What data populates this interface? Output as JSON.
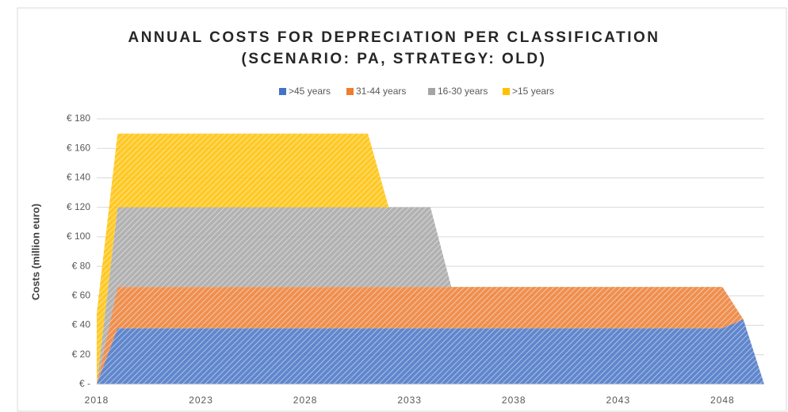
{
  "chart_data": {
    "type": "area",
    "title": [
      "ANNUAL COSTS FOR DEPRECIATION PER CLASSIFICATION",
      "(SCENARIO: PA, STRATEGY: OLD)"
    ],
    "y_label": "Costs (million euro)",
    "x": [
      2018,
      2019,
      2020,
      2021,
      2022,
      2023,
      2024,
      2025,
      2026,
      2027,
      2028,
      2029,
      2030,
      2031,
      2032,
      2033,
      2034,
      2035,
      2036,
      2037,
      2038,
      2039,
      2040,
      2041,
      2042,
      2043,
      2044,
      2045,
      2046,
      2047,
      2048,
      2049,
      2050
    ],
    "xlim": [
      2018,
      2050
    ],
    "xticks": [
      2018,
      2023,
      2028,
      2033,
      2038,
      2043,
      2048
    ],
    "ylim": [
      0,
      180
    ],
    "yticks": [
      {
        "value": 0,
        "label": "€ -"
      },
      {
        "value": 20,
        "label": "€ 20"
      },
      {
        "value": 40,
        "label": "€ 40"
      },
      {
        "value": 60,
        "label": "€ 60"
      },
      {
        "value": 80,
        "label": "€ 80"
      },
      {
        "value": 100,
        "label": "€ 100"
      },
      {
        "value": 120,
        "label": "€ 120"
      },
      {
        "value": 140,
        "label": "€ 140"
      },
      {
        "value": 160,
        "label": "€ 160"
      },
      {
        "value": 180,
        "label": "€ 180"
      }
    ],
    "grid": true,
    "stacked": true,
    "legend": "top",
    "series": [
      {
        "name": ">45 years",
        "color": "#4472c4",
        "values": [
          0,
          38,
          38,
          38,
          38,
          38,
          38,
          38,
          38,
          38,
          38,
          38,
          38,
          38,
          38,
          38,
          38,
          38,
          38,
          38,
          38,
          38,
          38,
          38,
          38,
          38,
          38,
          38,
          38,
          38,
          38,
          44,
          0
        ]
      },
      {
        "name": "31-44 years",
        "color": "#ed7d31",
        "values": [
          0,
          28,
          28,
          28,
          28,
          28,
          28,
          28,
          28,
          28,
          28,
          28,
          28,
          28,
          28,
          28,
          28,
          28,
          28,
          28,
          28,
          28,
          28,
          28,
          28,
          28,
          28,
          28,
          28,
          28,
          28,
          0,
          0
        ]
      },
      {
        "name": "16-30 years",
        "color": "#a5a5a5",
        "values": [
          0,
          54,
          54,
          54,
          54,
          54,
          54,
          54,
          54,
          54,
          54,
          54,
          54,
          54,
          54,
          54,
          54,
          0,
          0,
          0,
          0,
          0,
          0,
          0,
          0,
          0,
          0,
          0,
          0,
          0,
          0,
          0,
          0
        ]
      },
      {
        "name": ">15 years",
        "color": "#ffc000",
        "values": [
          48,
          50,
          50,
          50,
          50,
          50,
          50,
          50,
          50,
          50,
          50,
          50,
          50,
          50,
          0,
          0,
          0,
          0,
          0,
          0,
          0,
          0,
          0,
          0,
          0,
          0,
          0,
          0,
          0,
          0,
          0,
          0,
          0
        ]
      }
    ]
  }
}
